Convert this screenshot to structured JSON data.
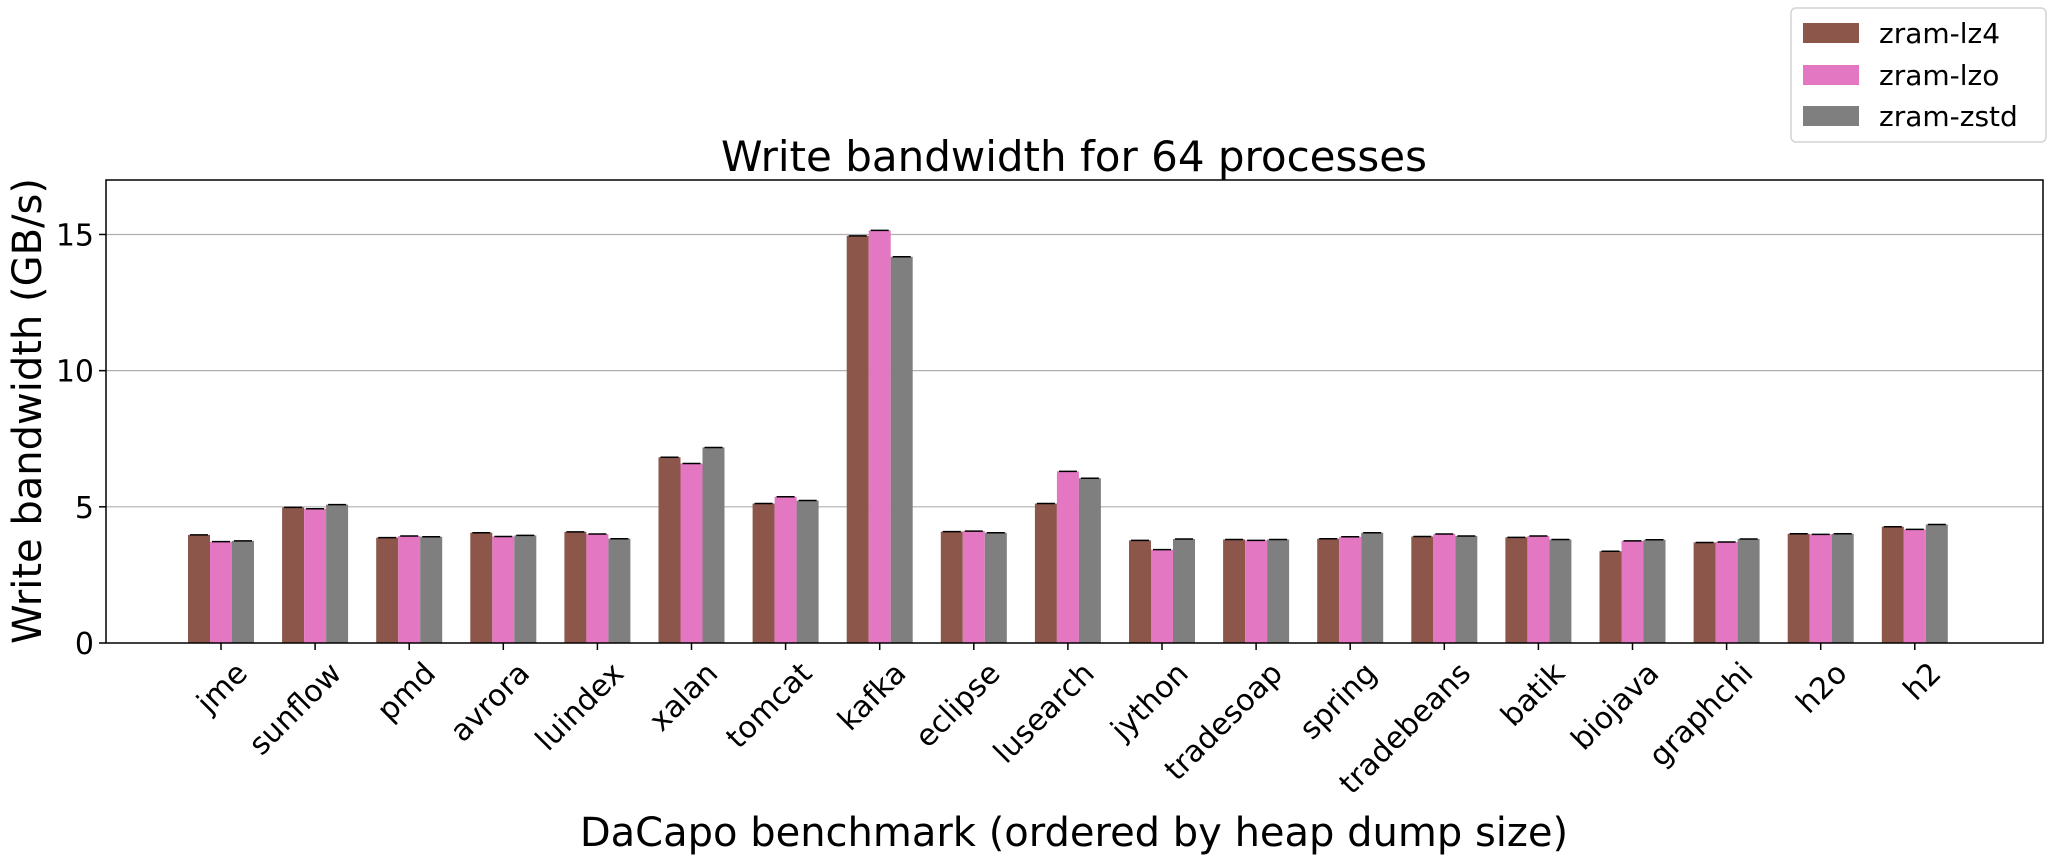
{
  "chart_data": {
    "type": "bar",
    "title": "Write bandwidth for 64 processes",
    "xlabel": "DaCapo benchmark (ordered by heap dump size)",
    "ylabel": "Write bandwidth (GB/s)",
    "ylim": [
      0,
      17
    ],
    "yticks": [
      0,
      5,
      10,
      15
    ],
    "grid": "horizontal",
    "legend_position": "top-right",
    "categories": [
      "jme",
      "sunflow",
      "pmd",
      "avrora",
      "luindex",
      "xalan",
      "tomcat",
      "kafka",
      "eclipse",
      "lusearch",
      "jython",
      "tradesoap",
      "spring",
      "tradebeans",
      "batik",
      "biojava",
      "graphchi",
      "h2o",
      "h2"
    ],
    "series": [
      {
        "name": "zram-lz4",
        "color": "#8c564b",
        "values": [
          3.97,
          4.98,
          3.87,
          4.05,
          4.08,
          6.82,
          5.12,
          14.95,
          4.09,
          5.12,
          3.77,
          3.8,
          3.83,
          3.91,
          3.88,
          3.37,
          3.69,
          4.01,
          4.27
        ]
      },
      {
        "name": "zram-lzo",
        "color": "#e377c2",
        "values": [
          3.72,
          4.93,
          3.93,
          3.91,
          4.0,
          6.59,
          5.37,
          15.15,
          4.11,
          6.3,
          3.43,
          3.77,
          3.9,
          4.0,
          3.93,
          3.75,
          3.71,
          3.99,
          4.17
        ]
      },
      {
        "name": "zram-zstd",
        "color": "#7f7f7f",
        "values": [
          3.75,
          5.08,
          3.9,
          3.95,
          3.83,
          7.18,
          5.23,
          14.18,
          4.05,
          6.05,
          3.82,
          3.8,
          4.05,
          3.93,
          3.8,
          3.79,
          3.82,
          4.01,
          4.35
        ]
      }
    ]
  }
}
